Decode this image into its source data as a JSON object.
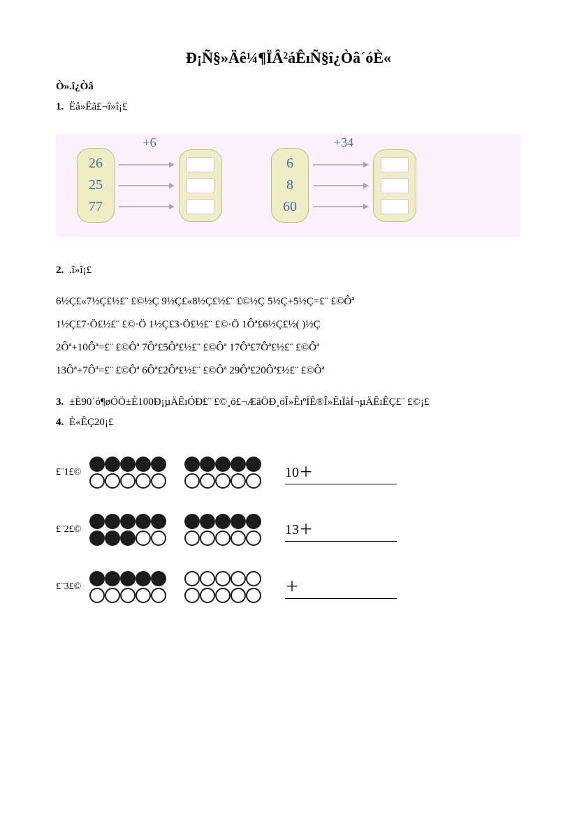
{
  "title": "Đ¡Ñ§»Äê¼¶ÏÂ²áÊıÑ§î¿Òâ´óÈ«",
  "section_heading": "Ò».î¿Òâ",
  "q1": {
    "prompt_num": "1.",
    "prompt_text": "Ëå»Ëã£¬î»î¡£",
    "left": {
      "op": "+6",
      "inputs": [
        "26",
        "25",
        "77"
      ]
    },
    "right": {
      "op": "+34",
      "inputs": [
        "6",
        "8",
        "60"
      ]
    }
  },
  "q2": {
    "prompt_num": "2.",
    "prompt_text": ".î»î¡£",
    "lines": [
      "6½Ç£«7½Ç£½£¨ £©½Ç   9½Ç£«8½Ç£½£¨ £©½Ç    5½Ç+5½Ç=£¨ £©Ôª",
      "1½Ç£7·Ö£½£¨ £©·Ö   1½Ç£3·Ö£½£¨ £©·Ö    1Ôª£6½Ç£½(  )½Ç",
      "2Ôª+10Ôª=£¨ £©Ôª   7Ôª£5Ôª£½£¨ £©Ôª    17Ôª£7Ôª£½£¨ £©Ôª",
      "13Ôª+7Ôª=£¨ £©Ôª   6Ôª£2Ôª£½£¨ £©Ôª     29Ôª£20Ôª£½£¨ £©Ôª"
    ]
  },
  "q3": {
    "prompt_num": "3.",
    "prompt_text": "±È90´ó¶øÓÖ±È100Đ¡µÄÊıÓĐ£¨   £©¸ö£¬ÆäÖĐ¸öÎ»ÊıºÍÊ®Î»ÊıÏàÍ¬µÄÊıÊÇ£¨   £©¡£"
  },
  "q4": {
    "prompt_num": "4.",
    "prompt_text": "È«ÊÇ20¡£",
    "rows": [
      {
        "label": "£¨1£©",
        "groups": [
          {
            "lines": [
              [
                1,
                1,
                1,
                1,
                1
              ],
              [
                0,
                0,
                0,
                0,
                0
              ]
            ]
          },
          {
            "lines": [
              [
                1,
                1,
                1,
                1,
                1
              ],
              [
                0,
                0,
                0,
                0,
                0
              ]
            ]
          }
        ],
        "eqn_prefix": "10＋"
      },
      {
        "label": "£¨2£©",
        "groups": [
          {
            "lines": [
              [
                1,
                1,
                1,
                1,
                1
              ],
              [
                1,
                1,
                1,
                0,
                0
              ]
            ]
          },
          {
            "lines": [
              [
                1,
                1,
                1,
                1,
                1
              ],
              [
                0,
                0,
                0,
                0,
                0
              ]
            ]
          }
        ],
        "eqn_prefix": "13＋"
      },
      {
        "label": "£¨3£©",
        "groups": [
          {
            "lines": [
              [
                1,
                1,
                1,
                1,
                1
              ],
              [
                0,
                0,
                0,
                0,
                0
              ]
            ]
          },
          {
            "lines": [
              [
                0,
                0,
                0,
                0,
                0
              ],
              [
                0,
                0,
                0,
                0,
                0
              ]
            ]
          }
        ],
        "eqn_prefix": "＋"
      }
    ]
  },
  "colors": {
    "page_bg": "#ffffff",
    "q1_bg": "#fbf1fa",
    "pill_bg": "#efedc6",
    "pill_border": "#bfbf84",
    "slot_border": "#e4c2d2",
    "num_color": "#3f6fa6",
    "arrow_color": "#9fa3c4",
    "dot_fill": "#1c1c1c"
  }
}
